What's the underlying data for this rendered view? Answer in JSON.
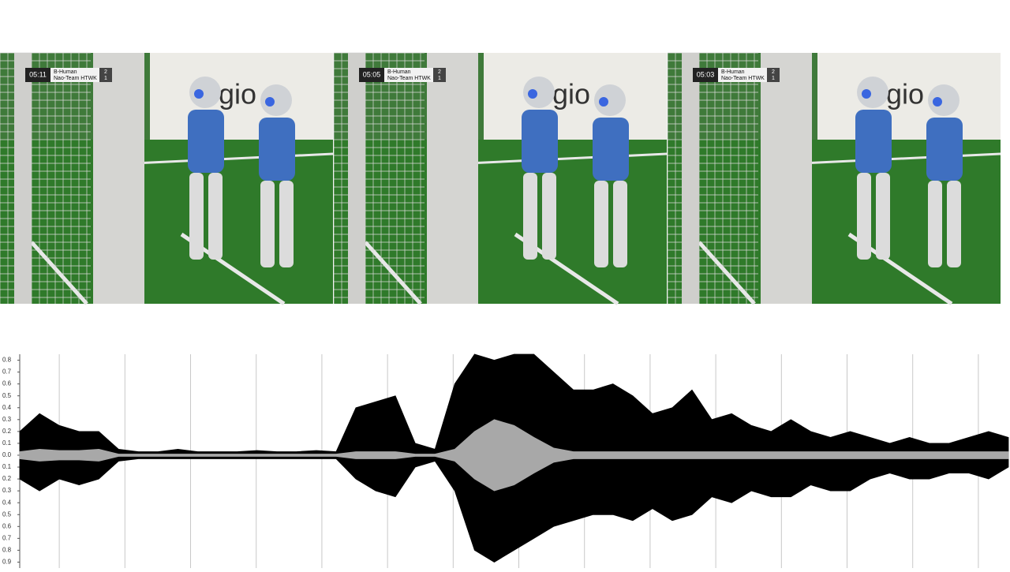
{
  "frames": [
    {
      "clock": "05:11",
      "team1": "B-Human",
      "team2": "Nao-Team HTWK",
      "score1": "2",
      "score2": "1",
      "banner": "regio"
    },
    {
      "clock": "05:05",
      "team1": "B-Human",
      "team2": "Nao-Team HTWK",
      "score1": "2",
      "score2": "1",
      "banner": "regio"
    },
    {
      "clock": "05:03",
      "team1": "B-Human",
      "team2": "Nao-Team HTWK",
      "score1": "2",
      "score2": "1",
      "banner": "regio"
    }
  ],
  "chart_data": {
    "type": "waveform",
    "x": [
      0,
      25,
      50,
      75,
      100,
      125,
      150,
      175,
      200,
      225,
      250,
      275,
      300,
      325,
      350,
      375,
      400,
      425,
      450,
      475,
      500,
      525,
      550,
      575,
      600,
      625,
      650,
      675,
      700,
      725,
      750,
      775,
      800,
      825,
      850,
      875,
      900,
      925,
      950,
      975,
      1000,
      1025,
      1050,
      1075,
      1100,
      1125,
      1150,
      1175,
      1200,
      1225,
      1250
    ],
    "xlim": [
      0,
      1250
    ],
    "xticks": [
      50,
      133,
      216,
      299,
      382,
      465,
      548,
      631,
      714,
      797,
      880,
      963,
      1046,
      1129,
      1212
    ],
    "ylim": [
      -0.95,
      0.85
    ],
    "yticks": [
      0.8,
      0.7,
      0.6,
      0.5,
      0.4,
      0.3,
      0.2,
      0.1,
      {
        "value": 0,
        "label": "0.0"
      },
      {
        "value": -0.1,
        "label": "0.1"
      },
      {
        "value": -0.2,
        "label": "0.2"
      },
      {
        "value": -0.3,
        "label": "0.3"
      },
      {
        "value": -0.4,
        "label": "0.4"
      },
      {
        "value": -0.5,
        "label": "0.5"
      },
      {
        "value": -0.6,
        "label": "0.6"
      },
      {
        "value": -0.7,
        "label": "0.7"
      },
      {
        "value": -0.8,
        "label": "0.8"
      },
      {
        "value": -0.9,
        "label": "0.9"
      }
    ],
    "grid": true,
    "series": [
      {
        "color": "#000000",
        "values": [
          0.2,
          0.35,
          0.25,
          0.2,
          0.2,
          0.05,
          0.03,
          0.03,
          0.05,
          0.03,
          0.03,
          0.03,
          0.04,
          0.03,
          0.03,
          0.04,
          0.03,
          0.4,
          0.45,
          0.5,
          0.1,
          0.05,
          0.6,
          0.85,
          0.8,
          0.85,
          0.85,
          0.7,
          0.55,
          0.55,
          0.6,
          0.5,
          0.35,
          0.4,
          0.55,
          0.3,
          0.35,
          0.25,
          0.2,
          0.3,
          0.2,
          0.15,
          0.2,
          0.15,
          0.1,
          0.15,
          0.1,
          0.1,
          0.15,
          0.2,
          0.15
        ]
      },
      {
        "color": "#000000",
        "values": [
          -0.2,
          -0.3,
          -0.2,
          -0.25,
          -0.2,
          -0.05,
          -0.03,
          -0.03,
          -0.03,
          -0.03,
          -0.03,
          -0.03,
          -0.03,
          -0.03,
          -0.03,
          -0.03,
          -0.03,
          -0.2,
          -0.3,
          -0.35,
          -0.1,
          -0.05,
          -0.3,
          -0.8,
          -0.9,
          -0.8,
          -0.7,
          -0.6,
          -0.55,
          -0.5,
          -0.5,
          -0.55,
          -0.45,
          -0.55,
          -0.5,
          -0.35,
          -0.4,
          -0.3,
          -0.35,
          -0.35,
          -0.25,
          -0.3,
          -0.3,
          -0.2,
          -0.15,
          -0.2,
          -0.2,
          -0.15,
          -0.15,
          -0.2,
          -0.1
        ]
      },
      {
        "color": "#a8a8a8",
        "values": [
          0.03,
          0.05,
          0.04,
          0.04,
          0.05,
          0.01,
          0.01,
          0.01,
          0.01,
          0.01,
          0.01,
          0.01,
          0.01,
          0.01,
          0.01,
          0.01,
          0.01,
          0.03,
          0.03,
          0.03,
          0.01,
          0.01,
          0.05,
          0.2,
          0.3,
          0.25,
          0.15,
          0.06,
          0.03,
          0.03,
          0.03,
          0.03,
          0.03,
          0.03,
          0.03,
          0.03,
          0.03,
          0.03,
          0.03,
          0.03,
          0.03,
          0.03,
          0.03,
          0.03,
          0.03,
          0.03,
          0.03,
          0.03,
          0.03,
          0.03,
          0.03
        ]
      },
      {
        "color": "#a8a8a8",
        "values": [
          -0.03,
          -0.05,
          -0.04,
          -0.04,
          -0.05,
          -0.01,
          -0.01,
          -0.01,
          -0.01,
          -0.01,
          -0.01,
          -0.01,
          -0.01,
          -0.01,
          -0.01,
          -0.01,
          -0.01,
          -0.03,
          -0.03,
          -0.03,
          -0.01,
          -0.01,
          -0.05,
          -0.2,
          -0.3,
          -0.25,
          -0.15,
          -0.06,
          -0.03,
          -0.03,
          -0.03,
          -0.03,
          -0.03,
          -0.03,
          -0.03,
          -0.03,
          -0.03,
          -0.03,
          -0.03,
          -0.03,
          -0.03,
          -0.03,
          -0.03,
          -0.03,
          -0.03,
          -0.03,
          -0.03,
          -0.03,
          -0.03,
          -0.03,
          -0.03
        ]
      }
    ]
  }
}
